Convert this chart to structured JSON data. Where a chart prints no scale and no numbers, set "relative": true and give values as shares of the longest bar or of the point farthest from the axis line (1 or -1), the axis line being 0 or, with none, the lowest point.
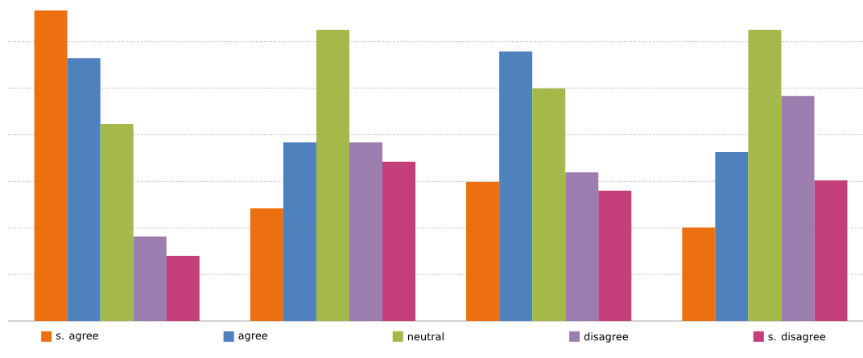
{
  "chart_data": {
    "type": "bar",
    "relative": true,
    "categories": [
      null,
      null,
      null,
      null
    ],
    "series": [
      {
        "name": "s. agree",
        "color": "#ec7010",
        "values": [
          1.0,
          0.363,
          0.448,
          0.301
        ]
      },
      {
        "name": "agree",
        "color": "#4f81bd",
        "values": [
          0.847,
          0.575,
          0.868,
          0.544
        ]
      },
      {
        "name": "neutral",
        "color": "#a5b94a",
        "values": [
          0.635,
          0.938,
          0.749,
          0.938
        ]
      },
      {
        "name": "disagree",
        "color": "#9c7db0",
        "values": [
          0.272,
          0.575,
          0.479,
          0.725
        ]
      },
      {
        "name": "s. disagree",
        "color": "#c33e7a",
        "values": [
          0.21,
          0.513,
          0.42,
          0.453
        ]
      }
    ],
    "grid": true,
    "legend": "bottom"
  }
}
